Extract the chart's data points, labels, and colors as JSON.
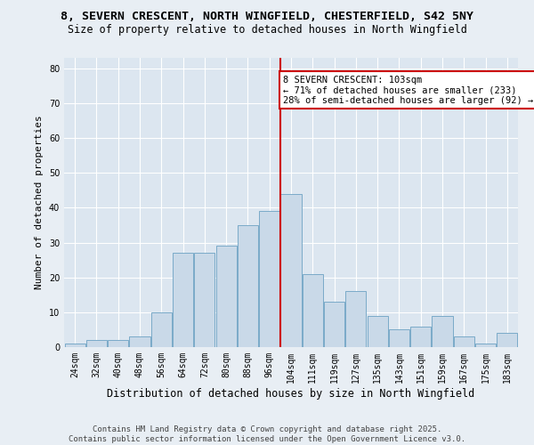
{
  "title1": "8, SEVERN CRESCENT, NORTH WINGFIELD, CHESTERFIELD, S42 5NY",
  "title2": "Size of property relative to detached houses in North Wingfield",
  "xlabel": "Distribution of detached houses by size in North Wingfield",
  "ylabel": "Number of detached properties",
  "categories": [
    "24sqm",
    "32sqm",
    "40sqm",
    "48sqm",
    "56sqm",
    "64sqm",
    "72sqm",
    "80sqm",
    "88sqm",
    "96sqm",
    "104sqm",
    "111sqm",
    "119sqm",
    "127sqm",
    "135sqm",
    "143sqm",
    "151sqm",
    "159sqm",
    "167sqm",
    "175sqm",
    "183sqm"
  ],
  "values": [
    1,
    2,
    2,
    3,
    10,
    27,
    27,
    29,
    35,
    39,
    44,
    21,
    13,
    16,
    9,
    5,
    6,
    9,
    3,
    1,
    4
  ],
  "bar_color": "#c9d9e8",
  "bar_edge_color": "#7aaac8",
  "vline_color": "#cc0000",
  "annotation_text": "8 SEVERN CRESCENT: 103sqm\n← 71% of detached houses are smaller (233)\n28% of semi-detached houses are larger (92) →",
  "annotation_box_color": "#ffffff",
  "annotation_box_edge": "#cc0000",
  "ylim": [
    0,
    83
  ],
  "yticks": [
    0,
    10,
    20,
    30,
    40,
    50,
    60,
    70,
    80
  ],
  "background_color": "#e8eef4",
  "plot_bg_color": "#dce6f0",
  "footer": "Contains HM Land Registry data © Crown copyright and database right 2025.\nContains public sector information licensed under the Open Government Licence v3.0.",
  "title1_fontsize": 9.5,
  "title2_fontsize": 8.5,
  "xlabel_fontsize": 8.5,
  "ylabel_fontsize": 8,
  "tick_fontsize": 7,
  "footer_fontsize": 6.5,
  "annotation_fontsize": 7.5
}
